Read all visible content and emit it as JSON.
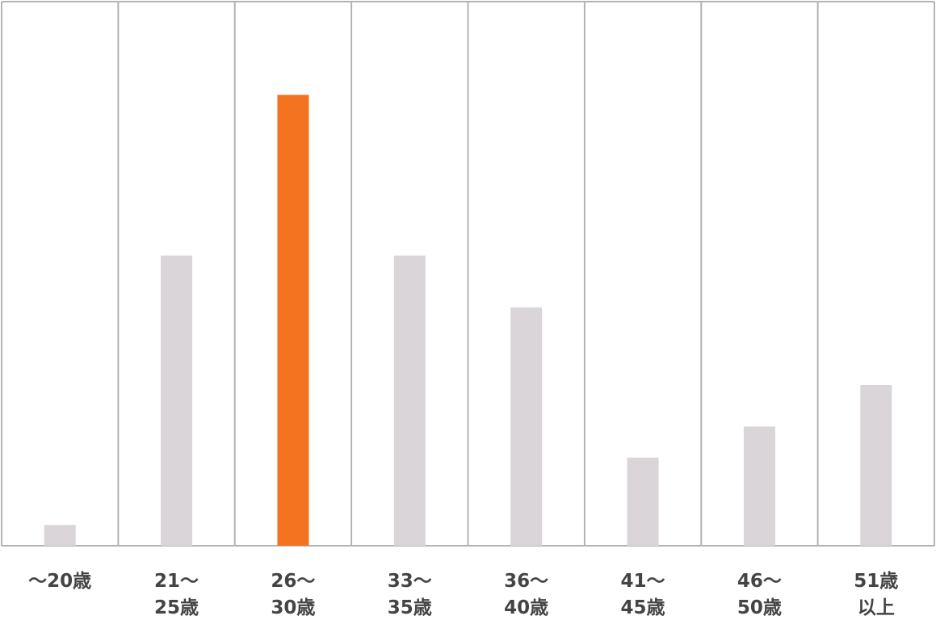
{
  "chart_data": {
    "type": "bar",
    "categories": [
      [
        "～20歳"
      ],
      [
        "21～",
        "25歳"
      ],
      [
        "26～",
        "30歳"
      ],
      [
        "33～",
        "35歳"
      ],
      [
        "36～",
        "40歳"
      ],
      [
        "41～",
        "45歳"
      ],
      [
        "46～",
        "50歳"
      ],
      [
        "51歳",
        "以上"
      ]
    ],
    "values": [
      4,
      56,
      87,
      56,
      46,
      17,
      23,
      31
    ],
    "ylim": [
      0,
      105
    ],
    "grid": "vertical separators between categories",
    "highlight_index": 2,
    "colors": {
      "bar": "#d9d5d8",
      "highlight": "#f47320",
      "grid": "#b3b3b3",
      "label": "#444444"
    },
    "title": "",
    "xlabel": "",
    "ylabel": ""
  }
}
